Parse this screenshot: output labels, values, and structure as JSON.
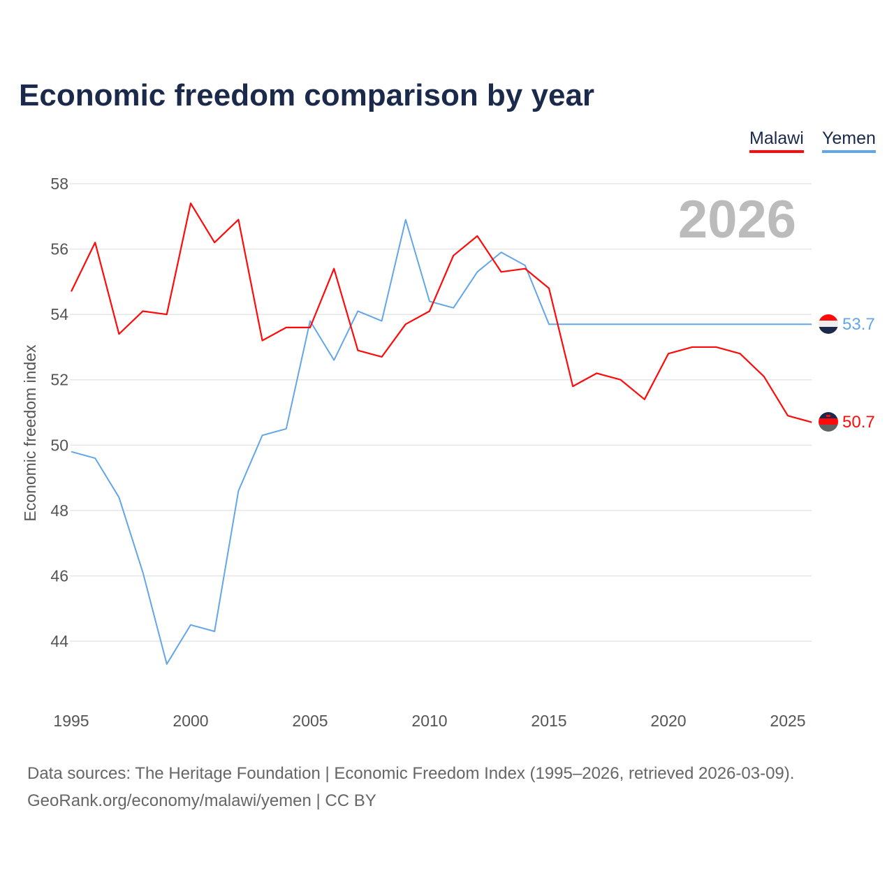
{
  "chart_data": {
    "type": "line",
    "title": "Economic freedom comparison by year",
    "xlabel": "",
    "ylabel": "Economic freedom index",
    "ylim": [
      42.5,
      58
    ],
    "xlim": [
      1995,
      2026
    ],
    "yticks": [
      44,
      46,
      48,
      50,
      52,
      54,
      56,
      58
    ],
    "xticks": [
      1995,
      2000,
      2005,
      2010,
      2015,
      2020,
      2025
    ],
    "grid": true,
    "year_label": "2026",
    "legend_position": "top-right",
    "x": [
      1995,
      1996,
      1997,
      1998,
      1999,
      2000,
      2001,
      2002,
      2003,
      2004,
      2005,
      2006,
      2007,
      2008,
      2009,
      2010,
      2011,
      2012,
      2013,
      2014,
      2015,
      2016,
      2017,
      2018,
      2019,
      2020,
      2021,
      2022,
      2023,
      2024,
      2025,
      2026
    ],
    "series": [
      {
        "name": "Malawi",
        "color": "#ff0a0a",
        "end_label": "50.7",
        "values": [
          54.7,
          56.2,
          53.4,
          54.1,
          54.0,
          57.4,
          56.2,
          56.9,
          53.2,
          53.6,
          53.6,
          55.4,
          52.9,
          52.7,
          53.7,
          54.1,
          55.8,
          56.4,
          55.3,
          55.4,
          54.8,
          51.8,
          52.2,
          52.0,
          51.4,
          52.8,
          53.0,
          53.0,
          52.8,
          52.1,
          50.9,
          50.7
        ]
      },
      {
        "name": "Yemen",
        "color": "#63a6e8",
        "end_label": "53.7",
        "values": [
          49.8,
          49.6,
          48.4,
          46.1,
          43.3,
          44.5,
          44.3,
          48.6,
          50.3,
          50.5,
          53.8,
          52.6,
          54.1,
          53.8,
          56.9,
          54.4,
          54.2,
          55.3,
          55.9,
          55.5,
          53.7,
          53.7,
          53.7,
          53.7,
          53.7,
          53.7,
          53.7,
          53.7,
          53.7,
          53.7,
          53.7,
          53.7
        ]
      }
    ]
  },
  "source": {
    "line1": "Data sources: The Heritage Foundation | Economic Freedom Index (1995–2026, retrieved 2026-03-09).",
    "line2": "GeoRank.org/economy/malawi/yemen | CC BY"
  }
}
